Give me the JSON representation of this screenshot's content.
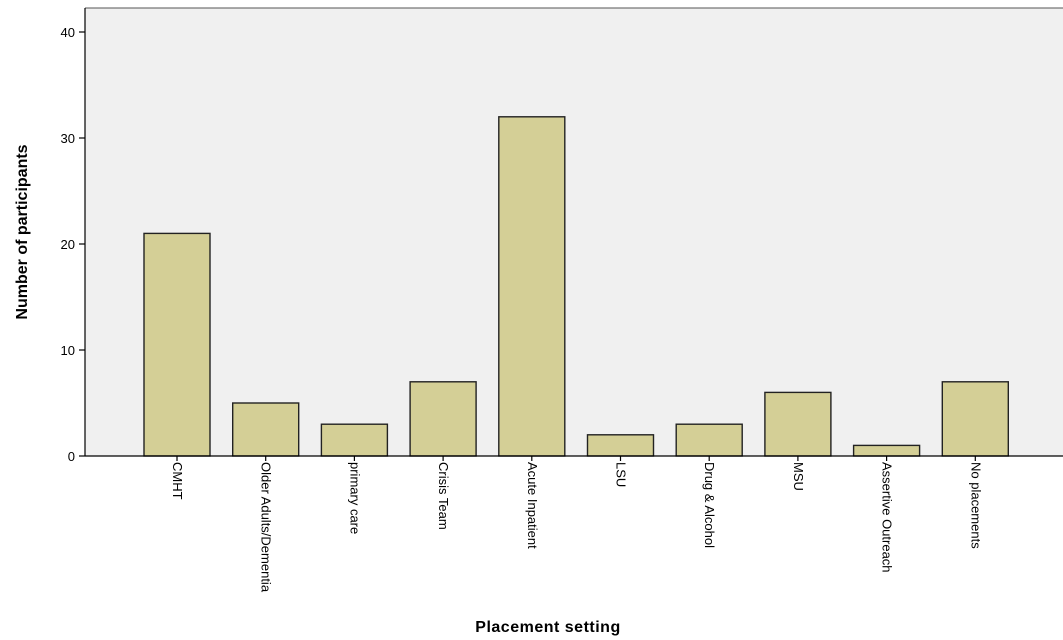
{
  "chart_data": {
    "type": "bar",
    "title": "",
    "xlabel": "Placement setting",
    "ylabel": "Number of participants",
    "categories": [
      "CMHT",
      "Older Adults/Dementia",
      "primary care",
      "Crisis Team",
      "Acute Inpatient",
      "LSU",
      "Drug & Alcohol",
      "MSU",
      "Assertive Outreach",
      "No placements"
    ],
    "values": [
      21,
      5,
      3,
      7,
      32,
      2,
      3,
      6,
      1,
      7
    ],
    "ylim": [
      0,
      40
    ],
    "yticks": [
      "0",
      "10",
      "20",
      "30",
      "40"
    ],
    "grid": false,
    "legend": "none"
  },
  "colors": {
    "bar_fill": "#d4cf96",
    "bar_stroke": "#222222",
    "plot_background": "#f0f0f0",
    "axis": "#000000"
  }
}
